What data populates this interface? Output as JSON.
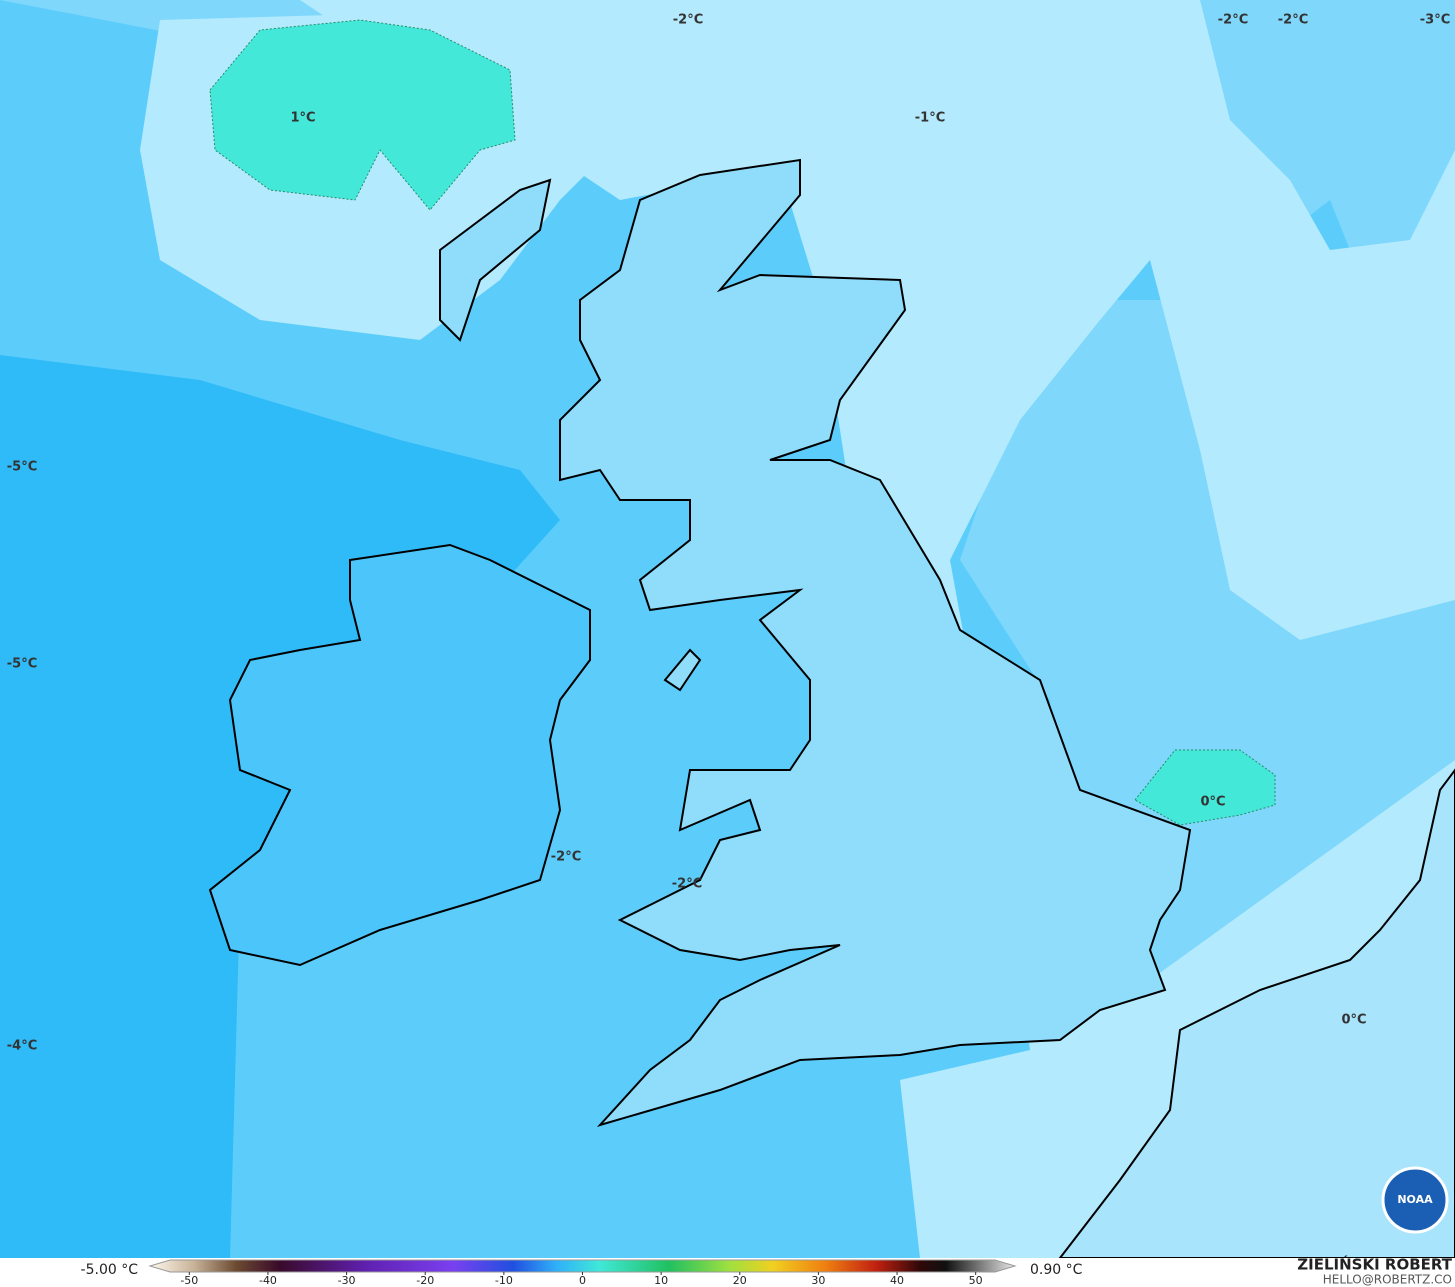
{
  "map": {
    "contour_labels": [
      "-2°C",
      "-2°C",
      "-2°C",
      "-3°C",
      "1°C",
      "-1°C",
      "-5°C",
      "-5°C",
      "-2°C",
      "-2°C",
      "0°C",
      "0°C",
      "-4°C"
    ],
    "logo": "NOAA"
  },
  "colorbar": {
    "min_label": "-5.00 °C",
    "max_label": "0.90 °C",
    "range": [
      -55,
      55
    ],
    "ticks": [
      -50,
      -40,
      -30,
      -20,
      -10,
      0,
      10,
      20,
      30,
      40,
      50
    ]
  },
  "credits": {
    "author": "ZIELIŃSKI ROBERT",
    "email": "HELLO@ROBERTZ.CO"
  }
}
